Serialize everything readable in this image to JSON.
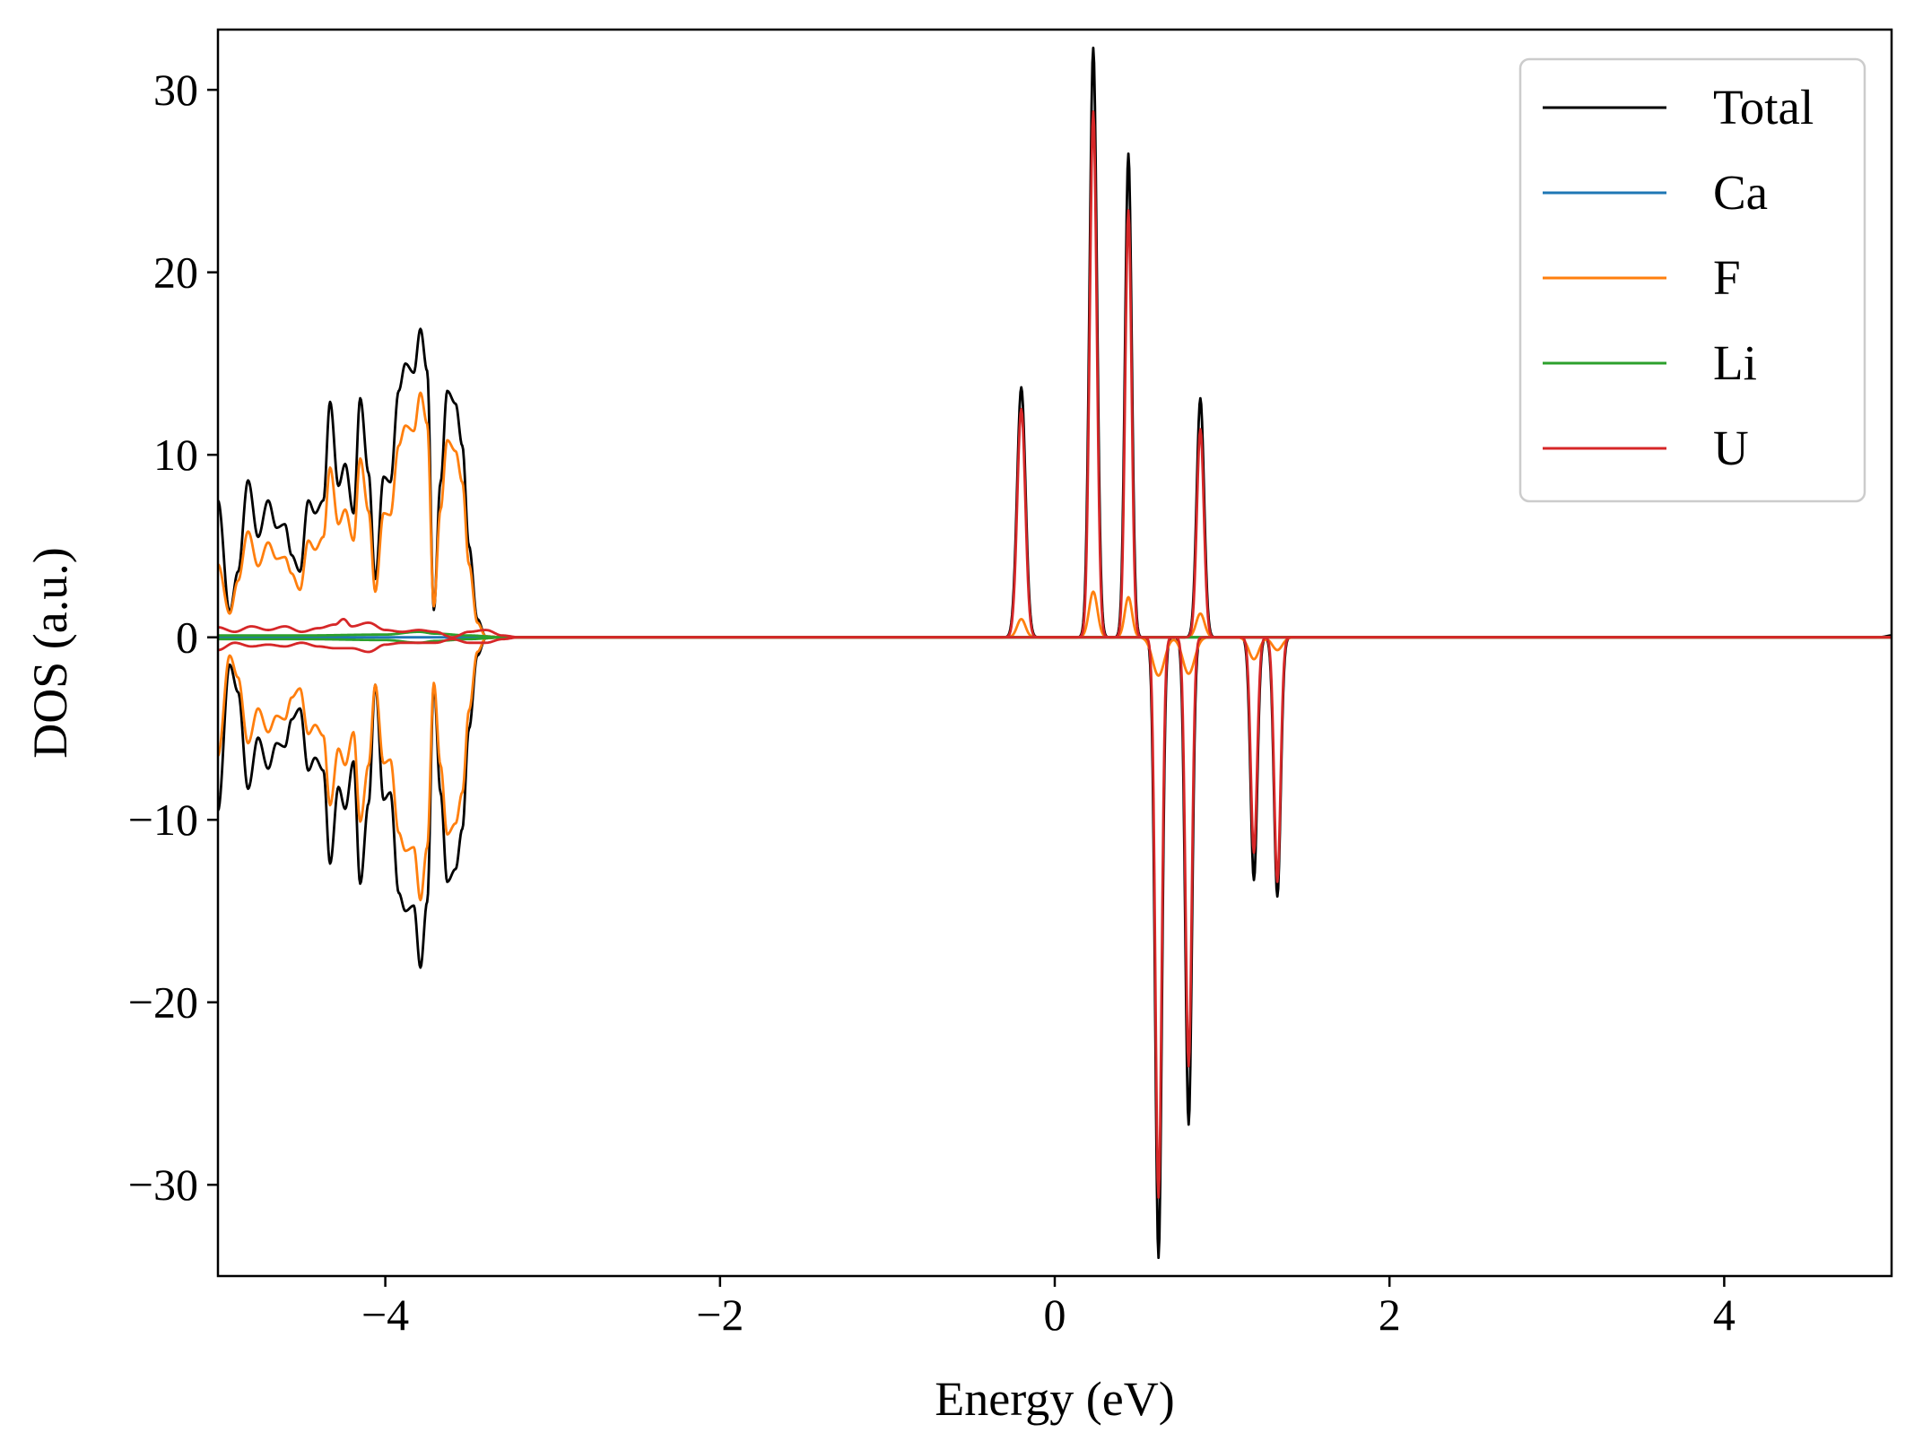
{
  "chart_data": {
    "type": "line",
    "xlabel": "Energy (eV)",
    "ylabel": "DOS (a.u.)",
    "xlim": [
      -5,
      5
    ],
    "ylim": [
      -35,
      33.3
    ],
    "xticks": [
      -4,
      -2,
      0,
      2,
      4
    ],
    "xtick_labels": [
      "−4",
      "−2",
      "0",
      "2",
      "4"
    ],
    "yticks": [
      30,
      20,
      10,
      0,
      -10,
      -20,
      -30
    ],
    "ytick_labels": [
      "30",
      "20",
      "10",
      "0",
      "−10",
      "−20",
      "−30"
    ],
    "grid": false,
    "legend_position": "top-right",
    "series": [
      {
        "name": "Total",
        "color": "#000000",
        "up": [
          [
            -5.0,
            7.5
          ],
          [
            -4.93,
            1.4
          ],
          [
            -4.88,
            3.6
          ],
          [
            -4.82,
            8.6
          ],
          [
            -4.76,
            5.5
          ],
          [
            -4.7,
            7.5
          ],
          [
            -4.65,
            6.0
          ],
          [
            -4.6,
            6.2
          ],
          [
            -4.56,
            4.5
          ],
          [
            -4.51,
            3.6
          ],
          [
            -4.46,
            7.5
          ],
          [
            -4.42,
            6.8
          ],
          [
            -4.37,
            7.5
          ],
          [
            -4.33,
            12.9
          ],
          [
            -4.28,
            8.3
          ],
          [
            -4.24,
            9.5
          ],
          [
            -4.19,
            6.8
          ],
          [
            -4.15,
            13.1
          ],
          [
            -4.1,
            9.0
          ],
          [
            -4.06,
            3.2
          ],
          [
            -4.01,
            8.8
          ],
          [
            -3.97,
            8.5
          ],
          [
            -3.92,
            13.5
          ],
          [
            -3.88,
            15.0
          ],
          [
            -3.83,
            14.5
          ],
          [
            -3.79,
            16.9
          ],
          [
            -3.75,
            14.6
          ],
          [
            -3.71,
            1.5
          ],
          [
            -3.67,
            8.5
          ],
          [
            -3.63,
            13.5
          ],
          [
            -3.58,
            12.8
          ],
          [
            -3.54,
            10.5
          ],
          [
            -3.5,
            5.0
          ],
          [
            -3.45,
            1.0
          ],
          [
            -3.4,
            0.05
          ],
          [
            -3.3,
            0.0
          ]
        ],
        "down": [
          [
            -5.0,
            -9.5
          ],
          [
            -4.93,
            -1.5
          ],
          [
            -4.88,
            -3.0
          ],
          [
            -4.82,
            -8.3
          ],
          [
            -4.76,
            -5.5
          ],
          [
            -4.7,
            -7.2
          ],
          [
            -4.65,
            -5.8
          ],
          [
            -4.6,
            -6.0
          ],
          [
            -4.56,
            -4.5
          ],
          [
            -4.51,
            -3.9
          ],
          [
            -4.46,
            -7.3
          ],
          [
            -4.42,
            -6.6
          ],
          [
            -4.37,
            -7.3
          ],
          [
            -4.33,
            -12.4
          ],
          [
            -4.28,
            -8.2
          ],
          [
            -4.24,
            -9.4
          ],
          [
            -4.19,
            -6.8
          ],
          [
            -4.15,
            -13.5
          ],
          [
            -4.1,
            -9.1
          ],
          [
            -4.06,
            -2.6
          ],
          [
            -4.01,
            -8.9
          ],
          [
            -3.97,
            -8.5
          ],
          [
            -3.92,
            -14.0
          ],
          [
            -3.88,
            -15.0
          ],
          [
            -3.83,
            -14.7
          ],
          [
            -3.79,
            -18.1
          ],
          [
            -3.75,
            -14.5
          ],
          [
            -3.71,
            -2.6
          ],
          [
            -3.67,
            -8.5
          ],
          [
            -3.63,
            -13.4
          ],
          [
            -3.58,
            -12.7
          ],
          [
            -3.54,
            -10.5
          ],
          [
            -3.5,
            -5.0
          ],
          [
            -3.45,
            -1.0
          ],
          [
            -3.4,
            -0.05
          ],
          [
            -3.3,
            0.0
          ]
        ],
        "peaks": [
          [
            -0.2,
            13.7,
            0.025
          ],
          [
            0.23,
            32.3,
            0.022
          ],
          [
            0.44,
            26.5,
            0.02
          ],
          [
            0.87,
            13.1,
            0.022
          ],
          [
            0.62,
            -34.0,
            0.02
          ],
          [
            0.8,
            -26.7,
            0.02
          ],
          [
            1.19,
            -13.3,
            0.02
          ],
          [
            1.33,
            -14.2,
            0.02
          ],
          [
            5.0,
            0.1,
            0.03
          ]
        ]
      },
      {
        "name": "Ca",
        "color": "#1f77b4",
        "up": [
          [
            -5.0,
            0.0
          ],
          [
            5.0,
            0.0
          ]
        ],
        "down": [],
        "peaks": []
      },
      {
        "name": "F",
        "color": "#ff7f0e",
        "up": [
          [
            -5.0,
            4.0
          ],
          [
            -4.93,
            1.3
          ],
          [
            -4.88,
            3.1
          ],
          [
            -4.82,
            5.8
          ],
          [
            -4.76,
            3.9
          ],
          [
            -4.7,
            5.2
          ],
          [
            -4.65,
            4.3
          ],
          [
            -4.6,
            4.4
          ],
          [
            -4.56,
            3.5
          ],
          [
            -4.51,
            2.6
          ],
          [
            -4.46,
            5.3
          ],
          [
            -4.42,
            4.8
          ],
          [
            -4.37,
            5.5
          ],
          [
            -4.33,
            9.3
          ],
          [
            -4.28,
            6.2
          ],
          [
            -4.24,
            7.0
          ],
          [
            -4.19,
            5.3
          ],
          [
            -4.15,
            9.8
          ],
          [
            -4.1,
            6.9
          ],
          [
            -4.06,
            2.5
          ],
          [
            -4.01,
            6.8
          ],
          [
            -3.97,
            6.7
          ],
          [
            -3.92,
            10.5
          ],
          [
            -3.88,
            11.6
          ],
          [
            -3.83,
            11.3
          ],
          [
            -3.79,
            13.4
          ],
          [
            -3.75,
            11.7
          ],
          [
            -3.71,
            1.7
          ],
          [
            -3.67,
            7.0
          ],
          [
            -3.63,
            10.8
          ],
          [
            -3.58,
            10.2
          ],
          [
            -3.54,
            8.5
          ],
          [
            -3.5,
            4.0
          ],
          [
            -3.45,
            0.8
          ],
          [
            -3.4,
            0.05
          ],
          [
            -3.3,
            0.0
          ]
        ],
        "down": [
          [
            -5.0,
            -6.5
          ],
          [
            -4.93,
            -1.0
          ],
          [
            -4.88,
            -2.2
          ],
          [
            -4.82,
            -5.8
          ],
          [
            -4.76,
            -3.9
          ],
          [
            -4.7,
            -5.2
          ],
          [
            -4.65,
            -4.3
          ],
          [
            -4.6,
            -4.5
          ],
          [
            -4.56,
            -3.3
          ],
          [
            -4.51,
            -2.8
          ],
          [
            -4.46,
            -5.3
          ],
          [
            -4.42,
            -4.8
          ],
          [
            -4.37,
            -5.4
          ],
          [
            -4.33,
            -9.2
          ],
          [
            -4.28,
            -6.1
          ],
          [
            -4.24,
            -7.0
          ],
          [
            -4.19,
            -5.2
          ],
          [
            -4.15,
            -10.1
          ],
          [
            -4.1,
            -7.0
          ],
          [
            -4.06,
            -2.6
          ],
          [
            -4.01,
            -6.9
          ],
          [
            -3.97,
            -6.7
          ],
          [
            -3.92,
            -10.7
          ],
          [
            -3.88,
            -11.7
          ],
          [
            -3.83,
            -11.5
          ],
          [
            -3.79,
            -14.4
          ],
          [
            -3.75,
            -11.5
          ],
          [
            -3.71,
            -2.5
          ],
          [
            -3.67,
            -7.0
          ],
          [
            -3.63,
            -10.8
          ],
          [
            -3.58,
            -10.2
          ],
          [
            -3.54,
            -8.5
          ],
          [
            -3.5,
            -4.0
          ],
          [
            -3.45,
            -0.8
          ],
          [
            -3.4,
            -0.05
          ],
          [
            -3.3,
            0.0
          ]
        ],
        "peaks": [
          [
            -0.2,
            1.0,
            0.025
          ],
          [
            0.23,
            2.5,
            0.025
          ],
          [
            0.44,
            2.2,
            0.022
          ],
          [
            0.87,
            1.3,
            0.025
          ],
          [
            0.62,
            -2.1,
            0.035
          ],
          [
            0.8,
            -2.0,
            0.035
          ],
          [
            1.19,
            -1.2,
            0.03
          ],
          [
            1.33,
            -0.7,
            0.03
          ]
        ]
      },
      {
        "name": "Li",
        "color": "#2ca02c",
        "up": [
          [
            -5.0,
            0.1
          ],
          [
            -4.5,
            0.1
          ],
          [
            -4.0,
            0.15
          ],
          [
            -3.8,
            0.3
          ],
          [
            -3.7,
            0.2
          ],
          [
            -3.5,
            0.1
          ],
          [
            -3.3,
            0.0
          ],
          [
            5.0,
            0.0
          ]
        ],
        "down": [
          [
            -5.0,
            -0.1
          ],
          [
            -4.5,
            -0.1
          ],
          [
            -4.0,
            -0.15
          ],
          [
            -3.8,
            -0.3
          ],
          [
            -3.7,
            -0.2
          ],
          [
            -3.5,
            -0.1
          ],
          [
            -3.3,
            0.0
          ]
        ],
        "peaks": []
      },
      {
        "name": "U",
        "color": "#d62728",
        "up": [
          [
            -5.0,
            0.55
          ],
          [
            -4.9,
            0.3
          ],
          [
            -4.8,
            0.6
          ],
          [
            -4.7,
            0.4
          ],
          [
            -4.6,
            0.6
          ],
          [
            -4.5,
            0.3
          ],
          [
            -4.4,
            0.5
          ],
          [
            -4.3,
            0.7
          ],
          [
            -4.25,
            1.0
          ],
          [
            -4.2,
            0.6
          ],
          [
            -4.1,
            0.8
          ],
          [
            -4.0,
            0.4
          ],
          [
            -3.9,
            0.3
          ],
          [
            -3.8,
            0.4
          ],
          [
            -3.7,
            0.3
          ],
          [
            -3.6,
            0.0
          ],
          [
            -3.5,
            0.3
          ],
          [
            -3.4,
            0.4
          ],
          [
            -3.3,
            0.1
          ],
          [
            -3.2,
            0.0
          ]
        ],
        "down": [
          [
            -5.0,
            -0.7
          ],
          [
            -4.9,
            -0.3
          ],
          [
            -4.8,
            -0.5
          ],
          [
            -4.7,
            -0.4
          ],
          [
            -4.6,
            -0.5
          ],
          [
            -4.5,
            -0.3
          ],
          [
            -4.4,
            -0.5
          ],
          [
            -4.3,
            -0.6
          ],
          [
            -4.2,
            -0.6
          ],
          [
            -4.1,
            -0.8
          ],
          [
            -4.0,
            -0.4
          ],
          [
            -3.9,
            -0.3
          ],
          [
            -3.8,
            -0.3
          ],
          [
            -3.7,
            -0.3
          ],
          [
            -3.6,
            -0.1
          ],
          [
            -3.5,
            -0.3
          ],
          [
            -3.4,
            -0.3
          ],
          [
            -3.3,
            -0.1
          ],
          [
            -3.2,
            0.0
          ]
        ],
        "peaks": [
          [
            -0.2,
            12.5,
            0.024
          ],
          [
            0.23,
            28.8,
            0.021
          ],
          [
            0.44,
            23.4,
            0.019
          ],
          [
            0.87,
            11.4,
            0.021
          ],
          [
            0.62,
            -30.7,
            0.019
          ],
          [
            0.8,
            -23.5,
            0.019
          ],
          [
            1.19,
            -11.8,
            0.019
          ],
          [
            1.33,
            -13.4,
            0.019
          ]
        ]
      }
    ]
  }
}
